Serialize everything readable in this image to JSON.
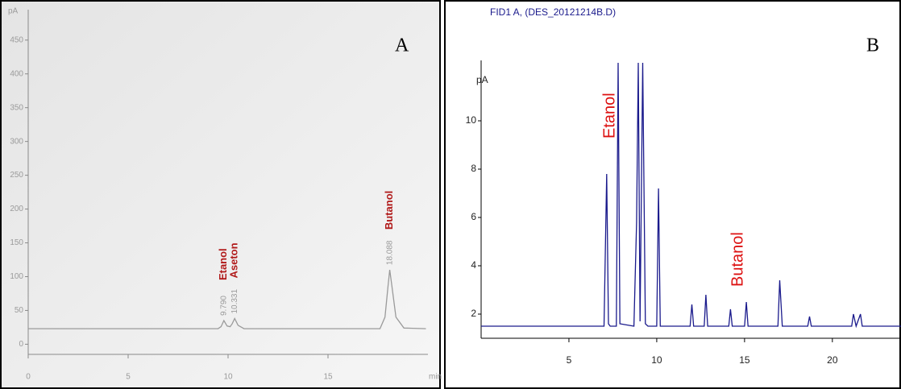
{
  "chart_data": [
    {
      "type": "line",
      "panel_label": "A",
      "y_label": "pA",
      "x_label": "min",
      "x": [
        0,
        9.5,
        9.65,
        9.79,
        9.95,
        10.1,
        10.2,
        10.33,
        10.5,
        10.8,
        17.6,
        17.85,
        18.0,
        18.09,
        18.2,
        18.4,
        18.8,
        19.9
      ],
      "values": [
        23,
        23,
        26,
        35,
        27,
        26,
        30,
        38,
        28,
        23,
        23,
        40,
        85,
        110,
        85,
        40,
        24,
        23
      ],
      "color": "#9a9a9a",
      "xlim": [
        0,
        20
      ],
      "xticks": [
        0,
        5,
        10,
        15
      ],
      "ylim": [
        -15,
        495
      ],
      "yticks": [
        0,
        50,
        100,
        150,
        200,
        250,
        300,
        350,
        400,
        450
      ],
      "peak_names": [
        {
          "text": "Etanol",
          "x": 9.79
        },
        {
          "text": "Aseton",
          "x": 10.33
        },
        {
          "text": "Butanol",
          "x": 18.09
        }
      ],
      "retention_times": [
        {
          "text": "9.790",
          "x": 9.79
        },
        {
          "text": "10.331",
          "x": 10.33
        },
        {
          "text": "18.088",
          "x": 18.09
        }
      ]
    },
    {
      "type": "line",
      "panel_label": "B",
      "title": "FID1 A, (DES_20121214B.D)",
      "y_label": "pA",
      "x": [
        0,
        7.0,
        7.15,
        7.25,
        7.35,
        7.7,
        7.8,
        7.9,
        8.7,
        8.85,
        8.95,
        9.05,
        9.2,
        9.35,
        9.5,
        10.0,
        10.1,
        10.2,
        11.9,
        12.0,
        12.1,
        12.7,
        12.8,
        12.9,
        14.1,
        14.2,
        14.3,
        15.0,
        15.1,
        15.2,
        16.9,
        17.0,
        17.15,
        18.6,
        18.7,
        18.8,
        21.1,
        21.2,
        21.35,
        21.6,
        21.7,
        24
      ],
      "values": [
        1.5,
        1.5,
        7.8,
        1.6,
        1.5,
        1.5,
        12.4,
        1.6,
        1.5,
        5.8,
        12.4,
        1.7,
        12.4,
        1.6,
        1.5,
        1.5,
        7.2,
        1.5,
        1.5,
        2.4,
        1.5,
        1.5,
        2.8,
        1.5,
        1.5,
        2.2,
        1.5,
        1.5,
        2.5,
        1.5,
        1.5,
        3.4,
        1.5,
        1.5,
        1.9,
        1.5,
        1.5,
        2.0,
        1.5,
        2.0,
        1.5,
        1.5
      ],
      "color": "#1a1a8c",
      "xlim": [
        0,
        24
      ],
      "xticks": [
        5,
        10,
        15,
        20
      ],
      "ylim": [
        1,
        12.5
      ],
      "yticks": [
        2,
        4,
        6,
        8,
        10
      ],
      "peak_names": [
        {
          "text": "Etanol",
          "x": 7.8
        },
        {
          "text": "Butanol",
          "x": 15.1
        }
      ]
    }
  ]
}
